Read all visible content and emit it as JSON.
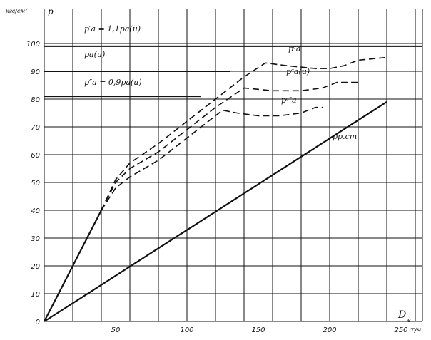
{
  "chart_data": {
    "type": "line",
    "title": "",
    "xlabel": "D",
    "xlabel_sub": "в",
    "x_unit": "т/ч",
    "ylabel": "p",
    "y_unit": "кгс/см²",
    "xlim": [
      0,
      265
    ],
    "ylim": [
      0,
      100
    ],
    "grid": true,
    "x_ticks": [
      {
        "v": 50,
        "t": "50"
      },
      {
        "v": 100,
        "t": "100"
      },
      {
        "v": 150,
        "t": "150"
      },
      {
        "v": 200,
        "t": "200"
      },
      {
        "v": 250,
        "t": "250"
      }
    ],
    "y_ticks": [
      {
        "v": 0,
        "t": "0"
      },
      {
        "v": 10,
        "t": "10"
      },
      {
        "v": 20,
        "t": "20"
      },
      {
        "v": 30,
        "t": "30"
      },
      {
        "v": 40,
        "t": "40"
      },
      {
        "v": 50,
        "t": "50"
      },
      {
        "v": 60,
        "t": "60"
      },
      {
        "v": 70,
        "t": "70"
      },
      {
        "v": 80,
        "t": "80"
      },
      {
        "v": 90,
        "t": "90"
      },
      {
        "v": 100,
        "t": "100"
      }
    ],
    "hlines": [
      {
        "y": 99,
        "x": [
          0,
          265
        ],
        "label": "p′а = 1,1pа(и)"
      },
      {
        "y": 90,
        "x": [
          0,
          130
        ],
        "label": "pа(и)"
      },
      {
        "y": 81,
        "x": [
          0,
          110
        ],
        "label": "p″а = 0,9pа(и)"
      }
    ],
    "series": [
      {
        "label": "pр.ст",
        "style": "solid",
        "points": [
          [
            0,
            0
          ],
          [
            240,
            79
          ]
        ]
      },
      {
        "label": "",
        "style": "solid",
        "points": [
          [
            0,
            0
          ],
          [
            40,
            40
          ]
        ]
      },
      {
        "label": "pᶜа",
        "style": "dash",
        "points": [
          [
            40,
            40
          ],
          [
            50,
            51
          ],
          [
            60,
            57
          ],
          [
            80,
            64
          ],
          [
            100,
            72
          ],
          [
            120,
            80
          ],
          [
            140,
            88
          ],
          [
            155,
            93
          ],
          [
            170,
            92
          ],
          [
            190,
            91
          ],
          [
            200,
            91
          ],
          [
            210,
            92
          ],
          [
            220,
            94
          ],
          [
            240,
            95
          ]
        ]
      },
      {
        "label": "pᶜа(и)",
        "style": "dash",
        "points": [
          [
            40,
            40
          ],
          [
            50,
            50
          ],
          [
            60,
            55
          ],
          [
            80,
            61
          ],
          [
            100,
            69
          ],
          [
            120,
            77
          ],
          [
            140,
            84
          ],
          [
            160,
            83
          ],
          [
            180,
            83
          ],
          [
            195,
            84
          ],
          [
            205,
            86
          ],
          [
            220,
            86
          ]
        ]
      },
      {
        "label": "pᶜ″а",
        "style": "dash",
        "points": [
          [
            40,
            40
          ],
          [
            50,
            48
          ],
          [
            60,
            52
          ],
          [
            80,
            58
          ],
          [
            100,
            66
          ],
          [
            110,
            70
          ],
          [
            125,
            76
          ],
          [
            135,
            75
          ],
          [
            150,
            74
          ],
          [
            165,
            74
          ],
          [
            180,
            75
          ],
          [
            190,
            77
          ],
          [
            195,
            77
          ]
        ]
      }
    ]
  }
}
